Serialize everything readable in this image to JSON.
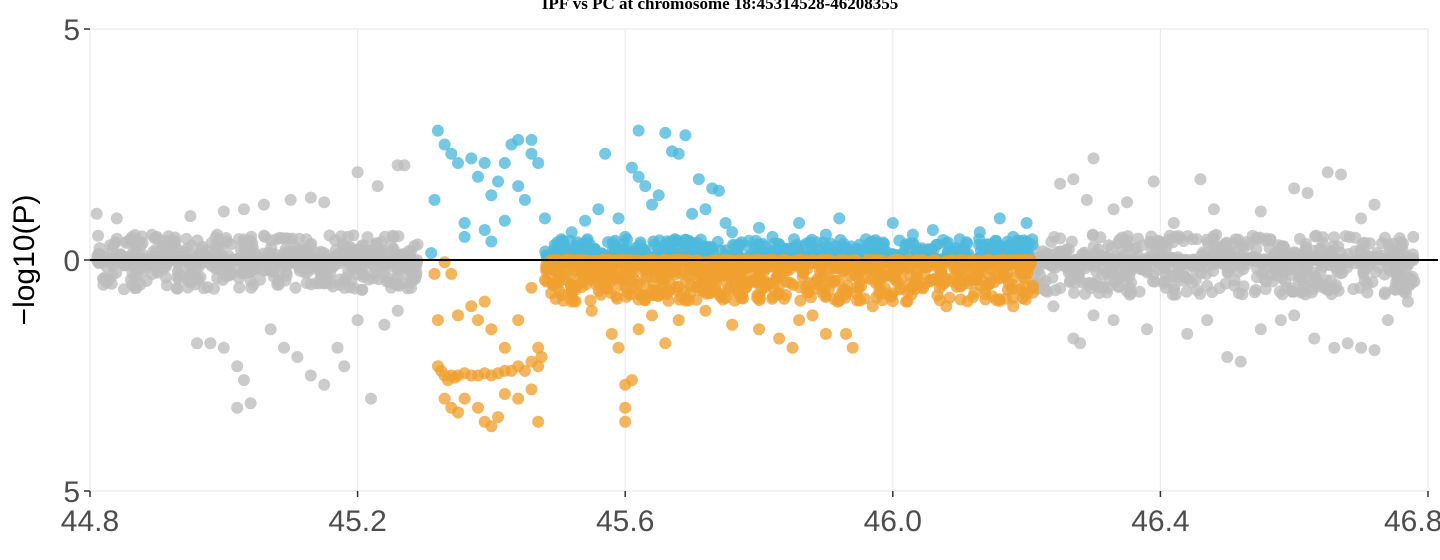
{
  "chart_data": {
    "type": "scatter",
    "title": "IPF vs PC at chromosome 18:45314528-46208355",
    "ylabel": "−log10(P)",
    "xlabel": "",
    "xlim": [
      44.8,
      46.8
    ],
    "ylim": [
      -5,
      5
    ],
    "x_ticks": [
      44.8,
      45.2,
      45.6,
      46.0,
      46.4,
      46.8
    ],
    "x_tick_labels": [
      "44.8",
      "45.2",
      "45.6",
      "46.0",
      "46.4",
      "46.8"
    ],
    "y_ticks": [
      5,
      0,
      -5
    ],
    "y_tick_labels": [
      "5",
      "0",
      "5"
    ],
    "grid": true,
    "legend": "none",
    "reference_line_y": 0,
    "region": [
      45.3145,
      46.2084
    ],
    "colors": {
      "outside_region": "#bdbdbd",
      "region_upper": "#4db8dc",
      "region_lower": "#f0a030",
      "zero_line": "#000000",
      "grid": "#ebebeb"
    },
    "series": [
      {
        "color_key": "outside_region",
        "segments": [
          {
            "x": [
              44.81,
              45.29
            ],
            "up": 0.55,
            "down": 0.65,
            "n": 700
          },
          {
            "x": [
              46.21,
              46.78
            ],
            "up": 0.55,
            "down": 0.75,
            "n": 750
          }
        ],
        "points": [
          [
            44.81,
            1.0
          ],
          [
            44.84,
            0.9
          ],
          [
            44.9,
            0.5
          ],
          [
            44.95,
            0.95
          ],
          [
            45.0,
            1.05
          ],
          [
            45.03,
            1.1
          ],
          [
            45.06,
            1.2
          ],
          [
            45.1,
            1.3
          ],
          [
            45.13,
            1.35
          ],
          [
            45.15,
            1.25
          ],
          [
            45.2,
            1.9
          ],
          [
            45.23,
            1.6
          ],
          [
            45.26,
            2.05
          ],
          [
            45.27,
            2.05
          ],
          [
            44.96,
            -1.8
          ],
          [
            44.98,
            -1.8
          ],
          [
            45.0,
            -1.9
          ],
          [
            45.02,
            -2.3
          ],
          [
            45.03,
            -2.6
          ],
          [
            45.04,
            -3.1
          ],
          [
            45.02,
            -3.2
          ],
          [
            45.07,
            -1.5
          ],
          [
            45.09,
            -1.9
          ],
          [
            45.11,
            -2.1
          ],
          [
            45.13,
            -2.5
          ],
          [
            45.15,
            -2.7
          ],
          [
            45.17,
            -1.9
          ],
          [
            45.18,
            -2.3
          ],
          [
            45.2,
            -1.3
          ],
          [
            45.22,
            -3.0
          ],
          [
            45.24,
            -1.4
          ],
          [
            45.26,
            -1.1
          ],
          [
            45.28,
            -0.6
          ],
          [
            46.25,
            1.65
          ],
          [
            46.27,
            1.75
          ],
          [
            46.29,
            1.3
          ],
          [
            46.33,
            1.1
          ],
          [
            46.35,
            1.25
          ],
          [
            46.39,
            1.7
          ],
          [
            46.42,
            0.8
          ],
          [
            46.46,
            1.75
          ],
          [
            46.48,
            1.1
          ],
          [
            46.55,
            1.05
          ],
          [
            46.6,
            1.55
          ],
          [
            46.62,
            1.45
          ],
          [
            46.65,
            1.9
          ],
          [
            46.67,
            1.85
          ],
          [
            46.7,
            0.9
          ],
          [
            46.72,
            1.2
          ],
          [
            46.3,
            2.2
          ],
          [
            46.24,
            -1.0
          ],
          [
            46.27,
            -1.7
          ],
          [
            46.28,
            -1.8
          ],
          [
            46.3,
            -1.2
          ],
          [
            46.33,
            -1.3
          ],
          [
            46.38,
            -1.5
          ],
          [
            46.44,
            -1.6
          ],
          [
            46.47,
            -1.3
          ],
          [
            46.5,
            -2.1
          ],
          [
            46.52,
            -2.2
          ],
          [
            46.55,
            -1.5
          ],
          [
            46.58,
            -1.3
          ],
          [
            46.6,
            -1.2
          ],
          [
            46.63,
            -1.7
          ],
          [
            46.66,
            -1.9
          ],
          [
            46.68,
            -1.8
          ],
          [
            46.7,
            -1.9
          ],
          [
            46.72,
            -1.95
          ],
          [
            46.74,
            -1.3
          ],
          [
            46.77,
            -0.9
          ]
        ]
      },
      {
        "color_key": "region_upper",
        "segments": [
          {
            "x": [
              45.48,
              46.21
            ],
            "up": 0.45,
            "down": 0.0,
            "n": 600
          }
        ],
        "points": [
          [
            45.31,
            0.15
          ],
          [
            45.315,
            1.3
          ],
          [
            45.32,
            2.8
          ],
          [
            45.33,
            2.5
          ],
          [
            45.34,
            2.3
          ],
          [
            45.35,
            2.1
          ],
          [
            45.36,
            0.8
          ],
          [
            45.36,
            0.5
          ],
          [
            45.37,
            2.2
          ],
          [
            45.38,
            1.8
          ],
          [
            45.39,
            2.1
          ],
          [
            45.4,
            0.4
          ],
          [
            45.4,
            1.4
          ],
          [
            45.41,
            1.7
          ],
          [
            45.42,
            2.1
          ],
          [
            45.43,
            2.5
          ],
          [
            45.44,
            2.6
          ],
          [
            45.44,
            1.6
          ],
          [
            45.45,
            1.3
          ],
          [
            45.46,
            2.6
          ],
          [
            45.46,
            2.3
          ],
          [
            45.47,
            2.1
          ],
          [
            45.48,
            0.9
          ],
          [
            45.42,
            0.85
          ],
          [
            45.39,
            0.65
          ],
          [
            45.5,
            0.3
          ],
          [
            45.52,
            0.6
          ],
          [
            45.54,
            0.85
          ],
          [
            45.56,
            1.1
          ],
          [
            45.57,
            2.3
          ],
          [
            45.59,
            0.9
          ],
          [
            45.6,
            0.5
          ],
          [
            45.61,
            2.0
          ],
          [
            45.62,
            1.8
          ],
          [
            45.62,
            2.8
          ],
          [
            45.63,
            1.6
          ],
          [
            45.64,
            1.2
          ],
          [
            45.65,
            1.4
          ],
          [
            45.66,
            2.75
          ],
          [
            45.67,
            2.35
          ],
          [
            45.68,
            2.3
          ],
          [
            45.69,
            2.7
          ],
          [
            45.7,
            1.0
          ],
          [
            45.71,
            1.75
          ],
          [
            45.72,
            1.1
          ],
          [
            45.73,
            1.55
          ],
          [
            45.74,
            1.5
          ],
          [
            45.75,
            0.8
          ],
          [
            45.76,
            0.6
          ],
          [
            45.8,
            0.7
          ],
          [
            45.82,
            0.5
          ],
          [
            45.86,
            0.8
          ],
          [
            45.9,
            0.55
          ],
          [
            45.92,
            0.9
          ],
          [
            45.96,
            0.45
          ],
          [
            46.0,
            0.8
          ],
          [
            46.03,
            0.55
          ],
          [
            46.06,
            0.65
          ],
          [
            46.1,
            0.45
          ],
          [
            46.13,
            0.6
          ],
          [
            46.16,
            0.9
          ],
          [
            46.18,
            0.5
          ],
          [
            46.2,
            0.8
          ]
        ]
      },
      {
        "color_key": "region_lower",
        "segments": [
          {
            "x": [
              45.48,
              46.21
            ],
            "up": 0.0,
            "down": 0.9,
            "n": 900
          }
        ],
        "points": [
          [
            45.315,
            -0.3
          ],
          [
            45.32,
            -1.3
          ],
          [
            45.33,
            -0.05
          ],
          [
            45.34,
            -0.3
          ],
          [
            45.35,
            -1.2
          ],
          [
            45.37,
            -1.0
          ],
          [
            45.38,
            -1.3
          ],
          [
            45.39,
            -0.9
          ],
          [
            45.4,
            -1.5
          ],
          [
            45.42,
            -1.9
          ],
          [
            45.44,
            -1.3
          ],
          [
            45.46,
            -0.6
          ],
          [
            45.47,
            -1.9
          ],
          [
            45.32,
            -2.3
          ],
          [
            45.325,
            -2.4
          ],
          [
            45.33,
            -2.5
          ],
          [
            45.335,
            -2.6
          ],
          [
            45.34,
            -2.5
          ],
          [
            45.345,
            -2.55
          ],
          [
            45.35,
            -2.5
          ],
          [
            45.36,
            -2.45
          ],
          [
            45.37,
            -2.5
          ],
          [
            45.38,
            -2.5
          ],
          [
            45.39,
            -2.45
          ],
          [
            45.4,
            -2.5
          ],
          [
            45.41,
            -2.45
          ],
          [
            45.42,
            -2.4
          ],
          [
            45.43,
            -2.4
          ],
          [
            45.44,
            -2.3
          ],
          [
            45.45,
            -2.4
          ],
          [
            45.46,
            -2.2
          ],
          [
            45.47,
            -2.3
          ],
          [
            45.475,
            -2.1
          ],
          [
            45.33,
            -3.0
          ],
          [
            45.34,
            -3.2
          ],
          [
            45.35,
            -3.3
          ],
          [
            45.36,
            -3.0
          ],
          [
            45.38,
            -3.2
          ],
          [
            45.39,
            -3.5
          ],
          [
            45.4,
            -3.6
          ],
          [
            45.41,
            -3.4
          ],
          [
            45.44,
            -3.0
          ],
          [
            45.47,
            -3.5
          ],
          [
            45.42,
            -2.9
          ],
          [
            45.46,
            -2.8
          ],
          [
            45.52,
            -0.9
          ],
          [
            45.55,
            -1.1
          ],
          [
            45.58,
            -1.6
          ],
          [
            45.59,
            -1.9
          ],
          [
            45.6,
            -2.7
          ],
          [
            45.6,
            -3.2
          ],
          [
            45.6,
            -3.5
          ],
          [
            45.61,
            -2.6
          ],
          [
            45.62,
            -1.5
          ],
          [
            45.64,
            -1.2
          ],
          [
            45.66,
            -1.8
          ],
          [
            45.68,
            -1.3
          ],
          [
            45.72,
            -1.1
          ],
          [
            45.76,
            -1.4
          ],
          [
            45.8,
            -1.5
          ],
          [
            45.83,
            -1.7
          ],
          [
            45.85,
            -1.9
          ],
          [
            45.86,
            -1.3
          ],
          [
            45.88,
            -1.2
          ],
          [
            45.9,
            -1.6
          ],
          [
            45.93,
            -1.6
          ],
          [
            45.94,
            -1.9
          ],
          [
            45.97,
            -1.0
          ],
          [
            46.02,
            -0.9
          ],
          [
            46.08,
            -1.0
          ],
          [
            46.12,
            -0.8
          ],
          [
            46.18,
            -1.0
          ]
        ]
      }
    ]
  }
}
